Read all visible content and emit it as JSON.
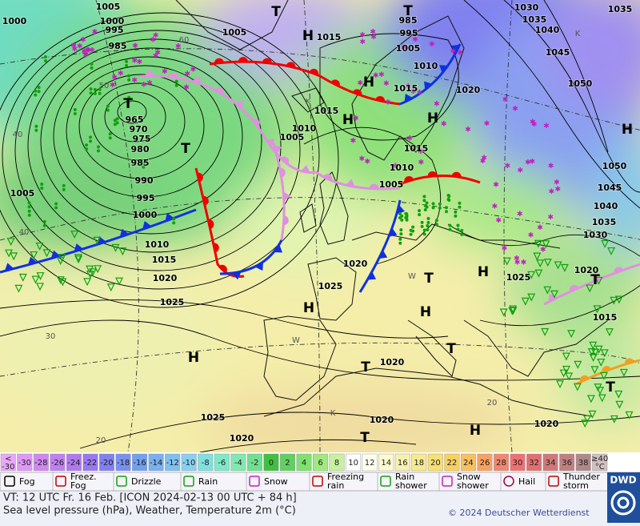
{
  "map": {
    "isobar_labels": [
      "1005",
      "1000",
      "1000",
      "995",
      "985",
      "1005",
      "1015",
      "985",
      "995",
      "1005",
      "1010",
      "1015",
      "1030",
      "1035",
      "1040",
      "1045",
      "1050",
      "1035",
      "1020",
      "1015",
      "1010",
      "1005",
      "965",
      "970",
      "975",
      "980",
      "985",
      "990",
      "995",
      "1005",
      "1000",
      "1010",
      "1015",
      "1020",
      "1025",
      "1015",
      "1010",
      "1005",
      "1020",
      "1025",
      "1025",
      "1030",
      "1035",
      "1040",
      "1045",
      "1050",
      "1020",
      "1015",
      "1020",
      "1020",
      "1020",
      "1025",
      "1020"
    ],
    "centers": [
      "T",
      "H",
      "T",
      "H",
      "H",
      "H",
      "T",
      "T",
      "H",
      "T",
      "H",
      "H",
      "H",
      "T",
      "H",
      "T",
      "T",
      "T",
      "H",
      "T"
    ],
    "grid_labels": [
      "60",
      "50",
      "40",
      "40",
      "30",
      "20",
      "K",
      "K",
      "W",
      "W",
      "20",
      "K"
    ]
  },
  "legend": {
    "scale": {
      "low": [
        "<",
        "-30"
      ],
      "steps": [
        "-30",
        "-28",
        "-26",
        "-24",
        "-22",
        "-20",
        "-18",
        "-16",
        "-14",
        "-12",
        "-10",
        "-8",
        "-6",
        "-4",
        "-2",
        "0",
        "2",
        "4",
        "6",
        "8",
        "10",
        "12",
        "14",
        "16",
        "18",
        "20",
        "22",
        "24",
        "26",
        "28",
        "30",
        "32",
        "34",
        "36",
        "38"
      ],
      "high": [
        "≥40",
        "°C"
      ]
    },
    "items": [
      [
        "Fog"
      ],
      [
        "Freez.",
        "Fog"
      ],
      [
        "Drizzle"
      ],
      [
        "Rain"
      ],
      [
        "Snow"
      ],
      [
        "Freezing",
        "rain"
      ],
      [
        "Rain",
        "shower"
      ],
      [
        "Snow",
        "shower"
      ],
      [
        "Hail"
      ],
      [
        "Thunder",
        "storm"
      ]
    ]
  },
  "footer": {
    "valid_time": "VT: 12 UTC Fr.  16 Feb. [ICON 2024-02-13  00 UTC + 84 h]",
    "description": "Sea level pressure (hPa), Weather, Temperature 2m (°C)",
    "copyright": "© 2024 Deutscher Wetterdienst",
    "logo": "DWD"
  }
}
